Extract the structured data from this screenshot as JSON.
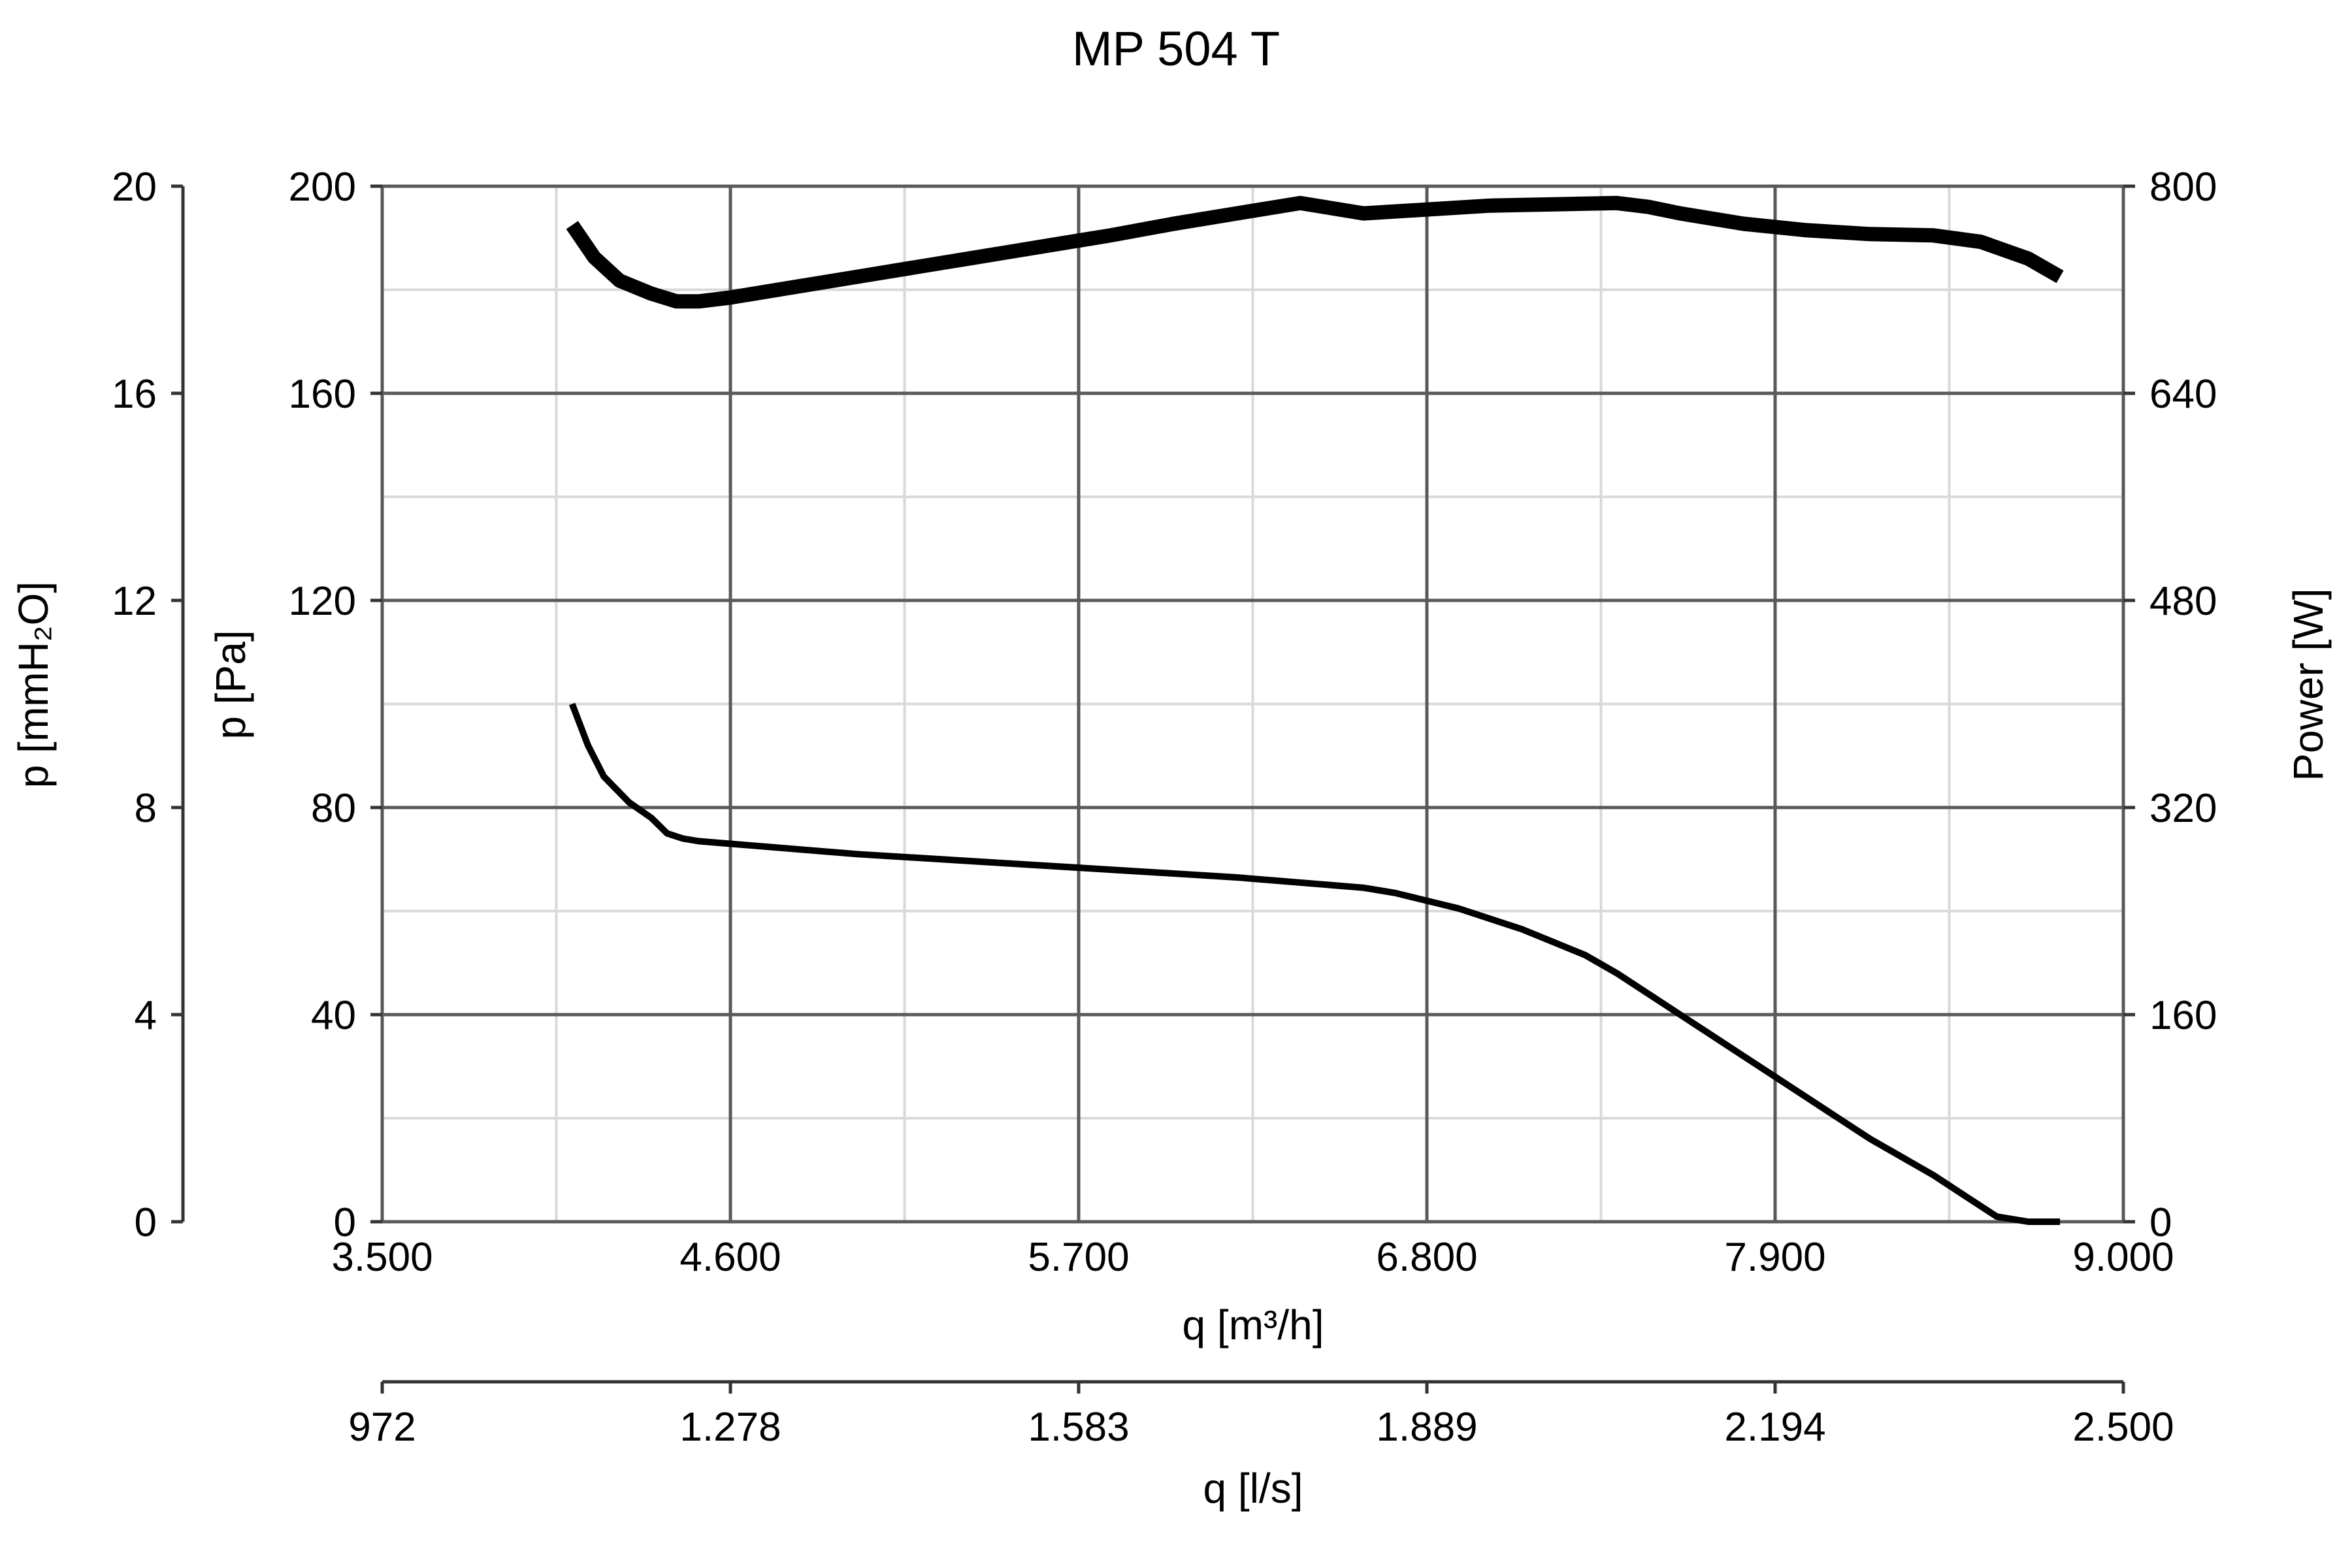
{
  "chart_data": {
    "type": "line",
    "title": "MP 504 T",
    "xlabel": "q [m³/h]",
    "xlim": [
      3500,
      9000
    ],
    "x_ticks": [
      "3.500",
      "4.600",
      "5.700",
      "6.800",
      "7.900",
      "9.000"
    ],
    "x2label": "q [l/s]",
    "x2_ticks": [
      "972",
      "1.278",
      "1.583",
      "1.889",
      "2.194",
      "2.500"
    ],
    "ylabel": "p [Pa]",
    "ylim": [
      0,
      200
    ],
    "y_ticks": [
      "0",
      "40",
      "80",
      "120",
      "160",
      "200"
    ],
    "y_outer_label": "p [mmH₂O]",
    "y_outer_ticks": [
      "0",
      "4",
      "8",
      "12",
      "16",
      "20"
    ],
    "y2label": "Power [W]",
    "y2lim": [
      0,
      800
    ],
    "y2_ticks": [
      "0",
      "160",
      "320",
      "480",
      "640",
      "800"
    ],
    "grid": true,
    "series": [
      {
        "axis": "y2",
        "style": "bold",
        "x": [
          4100,
          4170,
          4250,
          4350,
          4430,
          4500,
          4600,
          4800,
          5000,
          5200,
          5400,
          5600,
          5800,
          6000,
          6200,
          6400,
          6600,
          6800,
          7000,
          7200,
          7400,
          7500,
          7600,
          7800,
          8000,
          8200,
          8400,
          8550,
          8700,
          8800
        ],
        "y": [
          770,
          745,
          727,
          717,
          711,
          711,
          714,
          722,
          730,
          738,
          746,
          754,
          762,
          771,
          779,
          787,
          779,
          782,
          785,
          786,
          787,
          784,
          779,
          771,
          766,
          763,
          762,
          757,
          744,
          730
        ]
      },
      {
        "axis": "y",
        "style": "thin",
        "x": [
          4100,
          4150,
          4200,
          4280,
          4350,
          4400,
          4450,
          4500,
          4600,
          5000,
          5400,
          5800,
          6200,
          6600,
          6700,
          6800,
          6900,
          7000,
          7100,
          7200,
          7300,
          7400,
          7500,
          7600,
          7700,
          7800,
          7900,
          8000,
          8100,
          8200,
          8300,
          8400,
          8500,
          8600,
          8700,
          8800
        ],
        "y": [
          100,
          92,
          86,
          81,
          78,
          75,
          74,
          73.5,
          73,
          71,
          69.5,
          68,
          66.5,
          64.5,
          63.5,
          62,
          60.5,
          58.5,
          56.5,
          54,
          51.5,
          48,
          44,
          40,
          36,
          32,
          28,
          24,
          20,
          16,
          12.5,
          9,
          5,
          1,
          0,
          0
        ]
      }
    ]
  }
}
